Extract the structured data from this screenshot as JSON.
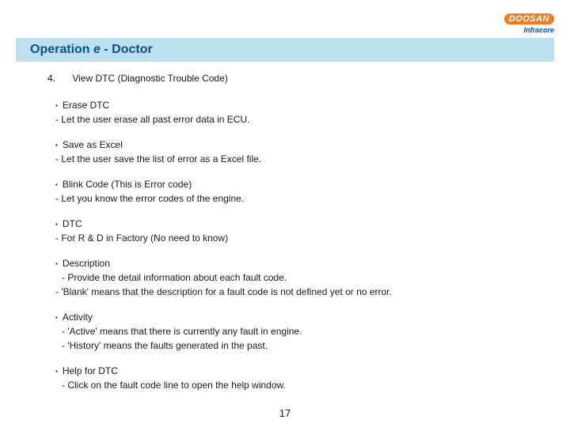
{
  "logo": {
    "brand": "DOOSAN",
    "sub": "Infracore"
  },
  "title": {
    "prefix": "Operation ",
    "italic": "e",
    "suffix": " - Doctor"
  },
  "heading": {
    "num": "4.",
    "text": "View DTC (Diagnostic Trouble Code)"
  },
  "sections": {
    "eraseDtc": {
      "name": "Erase DTC",
      "line1": "Let the user erase all past error data in ECU."
    },
    "saveExcel": {
      "name": "Save as Excel",
      "line1": "Let the user save the list of error as a Excel file."
    },
    "blink": {
      "name": "Blink Code (This is Error code)",
      "line1": "Let you know the error codes of the engine."
    },
    "dtc": {
      "name": "DTC",
      "line1": "For R & D in Factory (No need to know)"
    },
    "desc": {
      "name": "Description",
      "line1": "Provide the detail information about each fault code.",
      "line2": "'Blank' means that the description for a fault code is not defined yet or no error."
    },
    "activity": {
      "name": "Activity",
      "line1": "'Active' means that there is currently any fault in engine.",
      "line2": "'History' means the faults generated in the past."
    },
    "help": {
      "name": "Help for DTC",
      "line1": "Click on the fault code line to open the help window."
    }
  },
  "pageNumber": "17",
  "colors": {
    "titleBarBg": "#bde0ee",
    "titleText": "#0a4f8f",
    "logoOrange": "#f47b20",
    "bodyText": "#1a1a1a",
    "pageBg": "#ffffff"
  }
}
